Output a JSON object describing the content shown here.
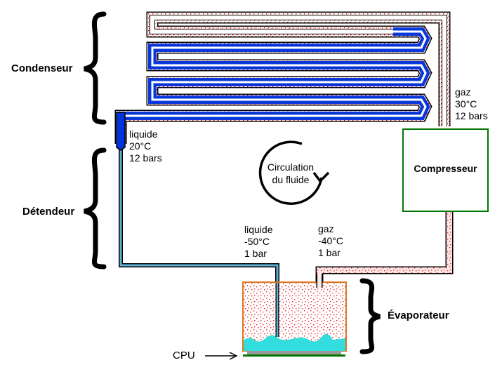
{
  "labels": {
    "condenseur": "Condenseur",
    "detendeur": "Détendeur",
    "evaporateur": "Évaporateur",
    "compresseur": "Compresseur",
    "cpu": "CPU",
    "circulation": "Circulation\ndu fluide"
  },
  "states": {
    "gas_hot": "gaz\n30°C\n12 bars",
    "liquid_hot": "liquide\n20°C\n12 bars",
    "liquid_cold": "liquide\n-50°C\n1 bar",
    "gas_cold": "gaz\n-40°C\n1 bar"
  },
  "colors": {
    "liquid": "#0033dd",
    "gas": "#ff0000",
    "compressor_border": "#007700",
    "evaporator_border": "#dd7722",
    "cpu_liquid": "#33dddd"
  }
}
